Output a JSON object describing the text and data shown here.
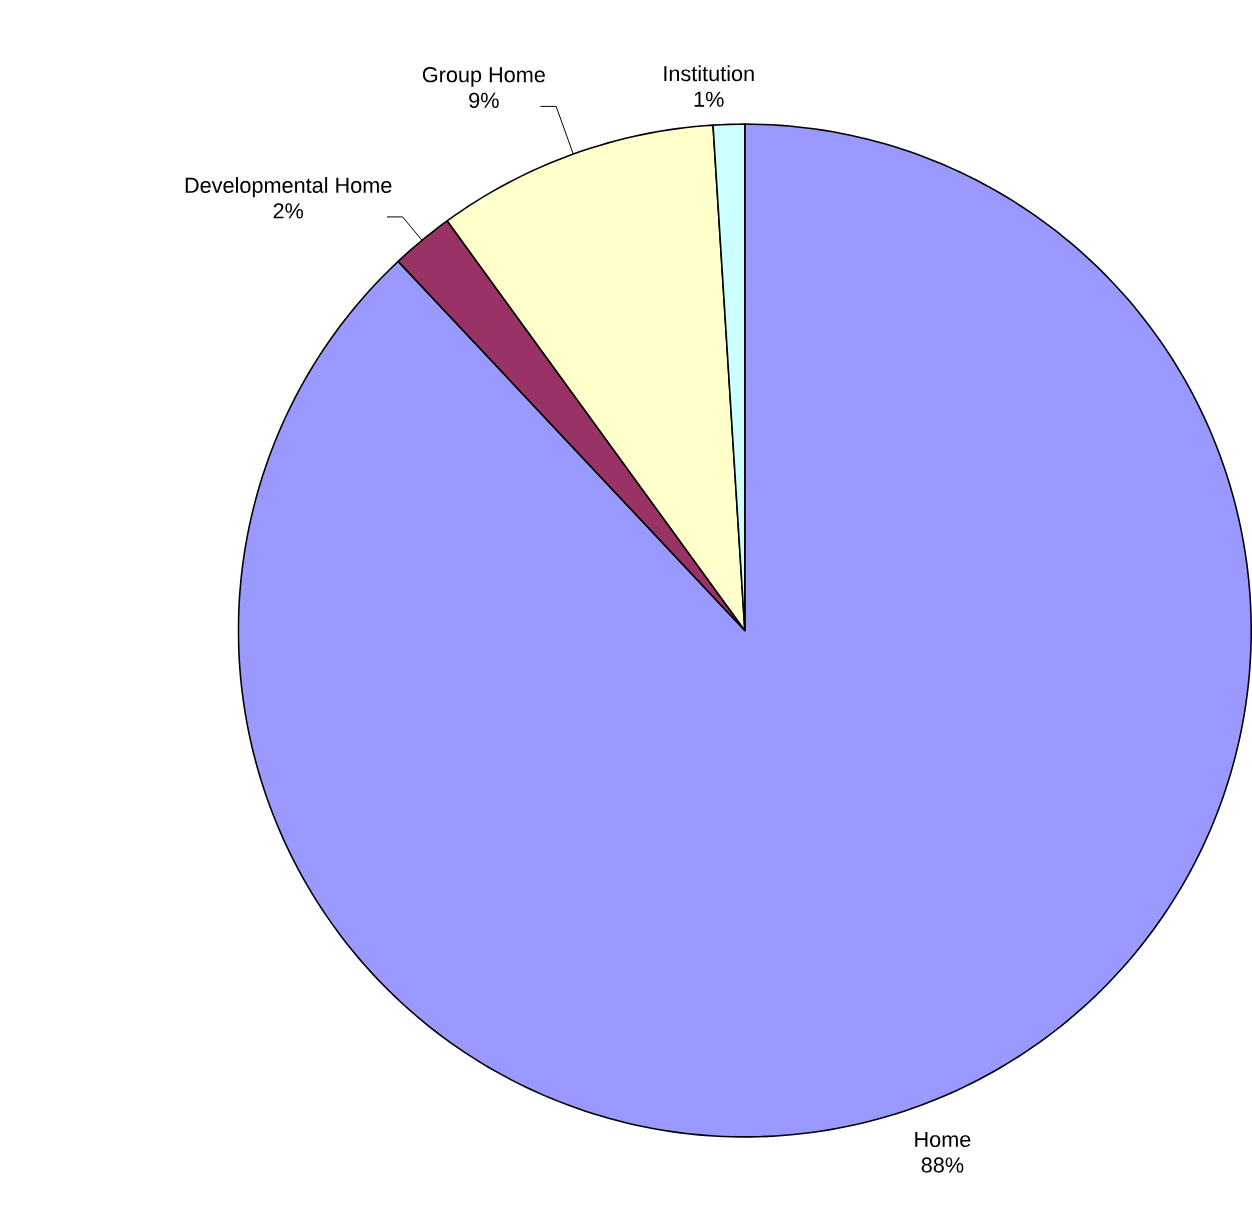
{
  "chart_data": {
    "type": "pie",
    "categories": [
      "Home",
      "Developmental Home",
      "Group Home",
      "Institution"
    ],
    "values": [
      88,
      2,
      9,
      1
    ],
    "value_labels": [
      "88%",
      "2%",
      "9%",
      "1%"
    ],
    "colors": [
      "#9999ff",
      "#993366",
      "#ffffcc",
      "#ccffff"
    ]
  }
}
